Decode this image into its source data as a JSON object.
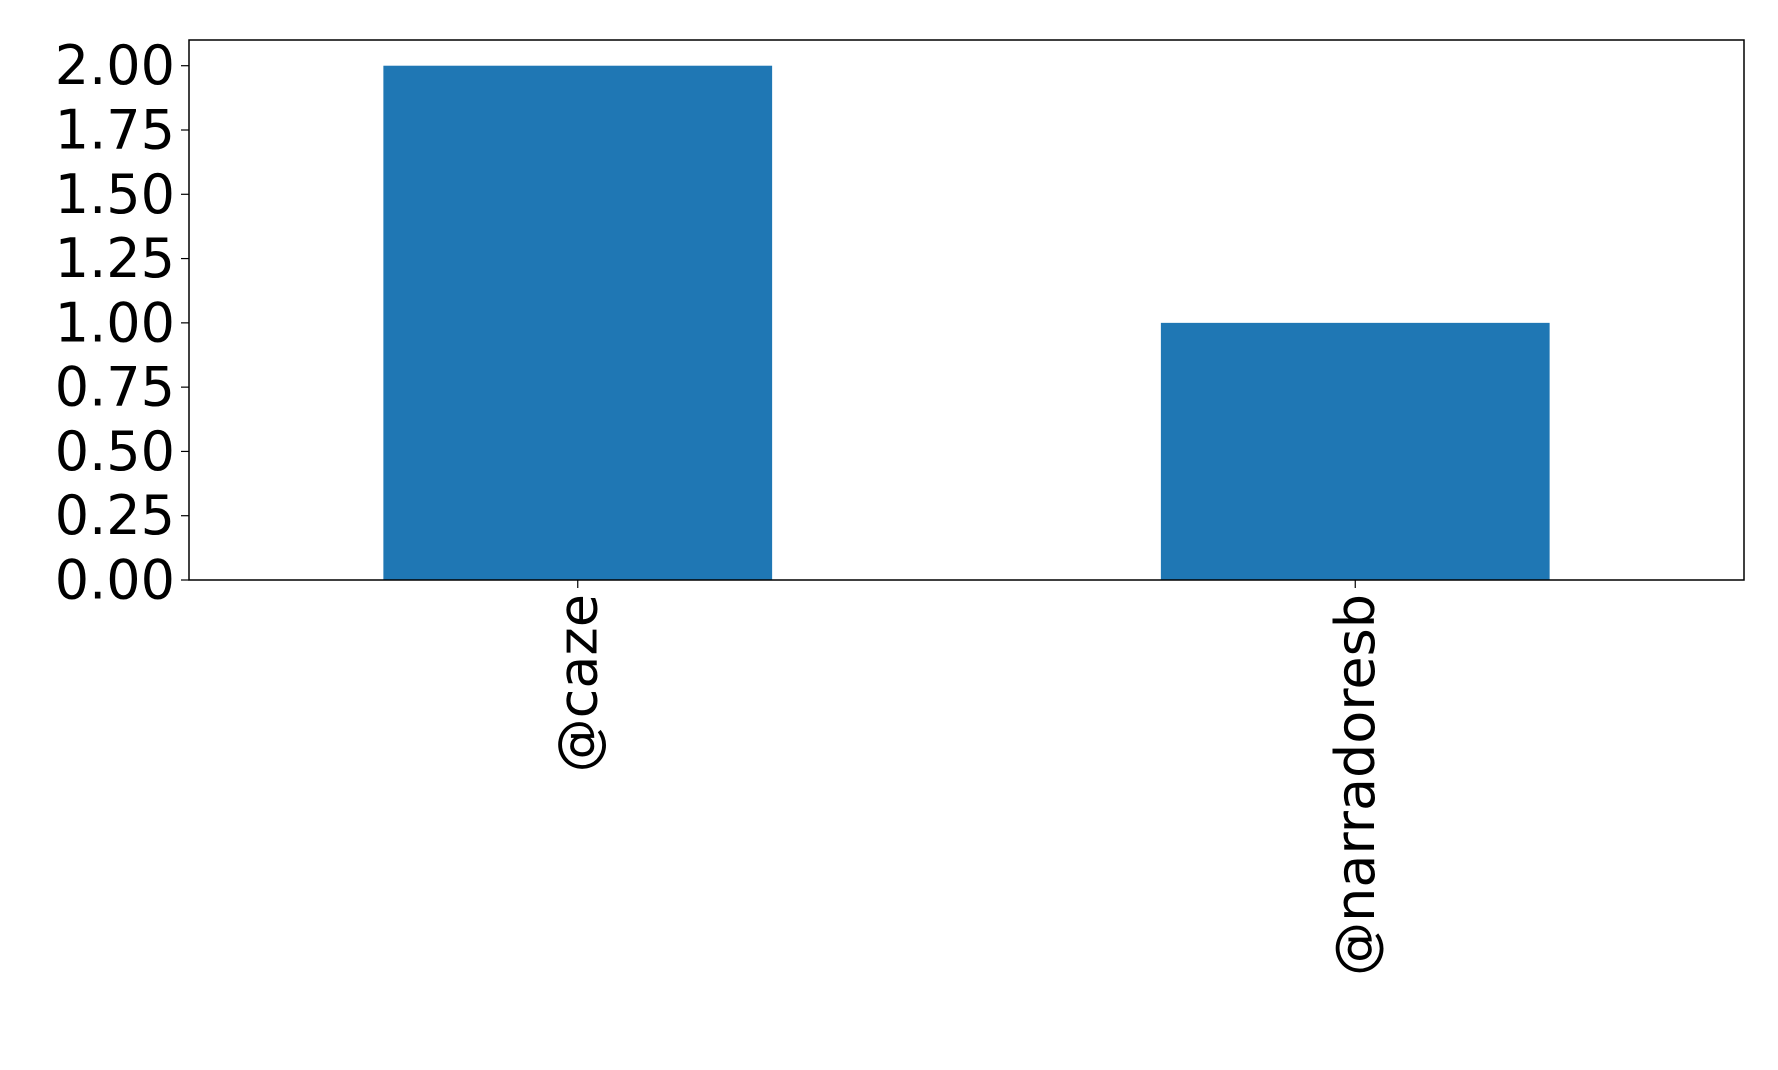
{
  "chart_data": {
    "type": "bar",
    "title": "",
    "xlabel": "",
    "ylabel": "",
    "categories": [
      "@caze",
      "@narradoresb"
    ],
    "values": [
      2,
      1
    ],
    "ylim": [
      0,
      2.1
    ],
    "yticks": [
      "0.00",
      "0.25",
      "0.50",
      "0.75",
      "1.00",
      "1.25",
      "1.50",
      "1.75",
      "2.00"
    ],
    "grid": false,
    "bar_color": "#1f77b4"
  }
}
